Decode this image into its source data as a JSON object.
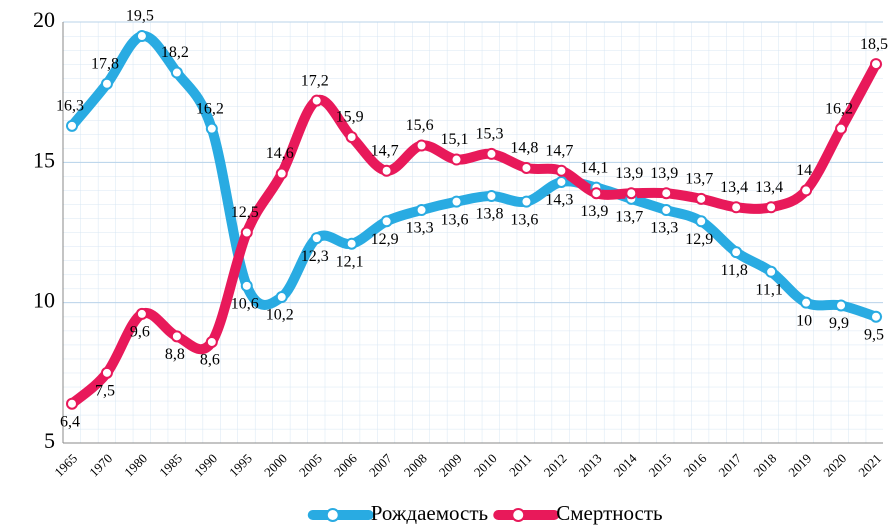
{
  "chart_data": {
    "type": "line",
    "categories": [
      "1965",
      "1970",
      "1980",
      "1985",
      "1990",
      "1995",
      "2000",
      "2005",
      "2006",
      "2007",
      "2008",
      "2009",
      "2010",
      "2011",
      "2012",
      "2013",
      "2014",
      "2015",
      "2016",
      "2017",
      "2018",
      "2019",
      "2020",
      "2021"
    ],
    "series": [
      {
        "name": "Рождаемость",
        "color": "#29abe2",
        "values": [
          16.3,
          17.8,
          19.5,
          18.2,
          16.2,
          10.6,
          10.2,
          12.3,
          12.1,
          12.9,
          13.3,
          13.6,
          13.8,
          13.6,
          14.3,
          14.1,
          13.7,
          13.3,
          12.9,
          11.8,
          11.1,
          10,
          9.9,
          9.5
        ],
        "value_labels": [
          "16,3",
          "17,8",
          "19,5",
          "18,2",
          "16,2",
          "10,6",
          "10,2",
          "12,3",
          "12,1",
          "12,9",
          "13,3",
          "13,6",
          "13,8",
          "13,6",
          "14,3",
          "14,1",
          "13,7",
          "13,3",
          "12,9",
          "11,8",
          "11,1",
          "10",
          "9,9",
          "9,5"
        ]
      },
      {
        "name": "Смертность",
        "color": "#e8195a",
        "values": [
          6.4,
          7.5,
          9.6,
          8.8,
          8.6,
          12.5,
          14.6,
          17.2,
          15.9,
          14.7,
          15.6,
          15.1,
          15.3,
          14.8,
          14.7,
          13.9,
          13.9,
          13.9,
          13.7,
          13.4,
          13.4,
          14,
          16.2,
          18.5
        ],
        "value_labels": [
          "6,4",
          "7,5",
          "9,6",
          "8,8",
          "8,6",
          "12,5",
          "14,6",
          "17,2",
          "15,9",
          "14,7",
          "15,6",
          "15,1",
          "15,3",
          "14,8",
          "14,7",
          "13,9",
          "13,9",
          "13,9",
          "13,7",
          "13,4",
          "13,4",
          "14",
          "16,2",
          "18,5"
        ]
      }
    ],
    "ylim": [
      5,
      20
    ],
    "yticks": [
      5,
      10,
      15,
      20
    ],
    "grid": true,
    "legend": "bottom"
  }
}
